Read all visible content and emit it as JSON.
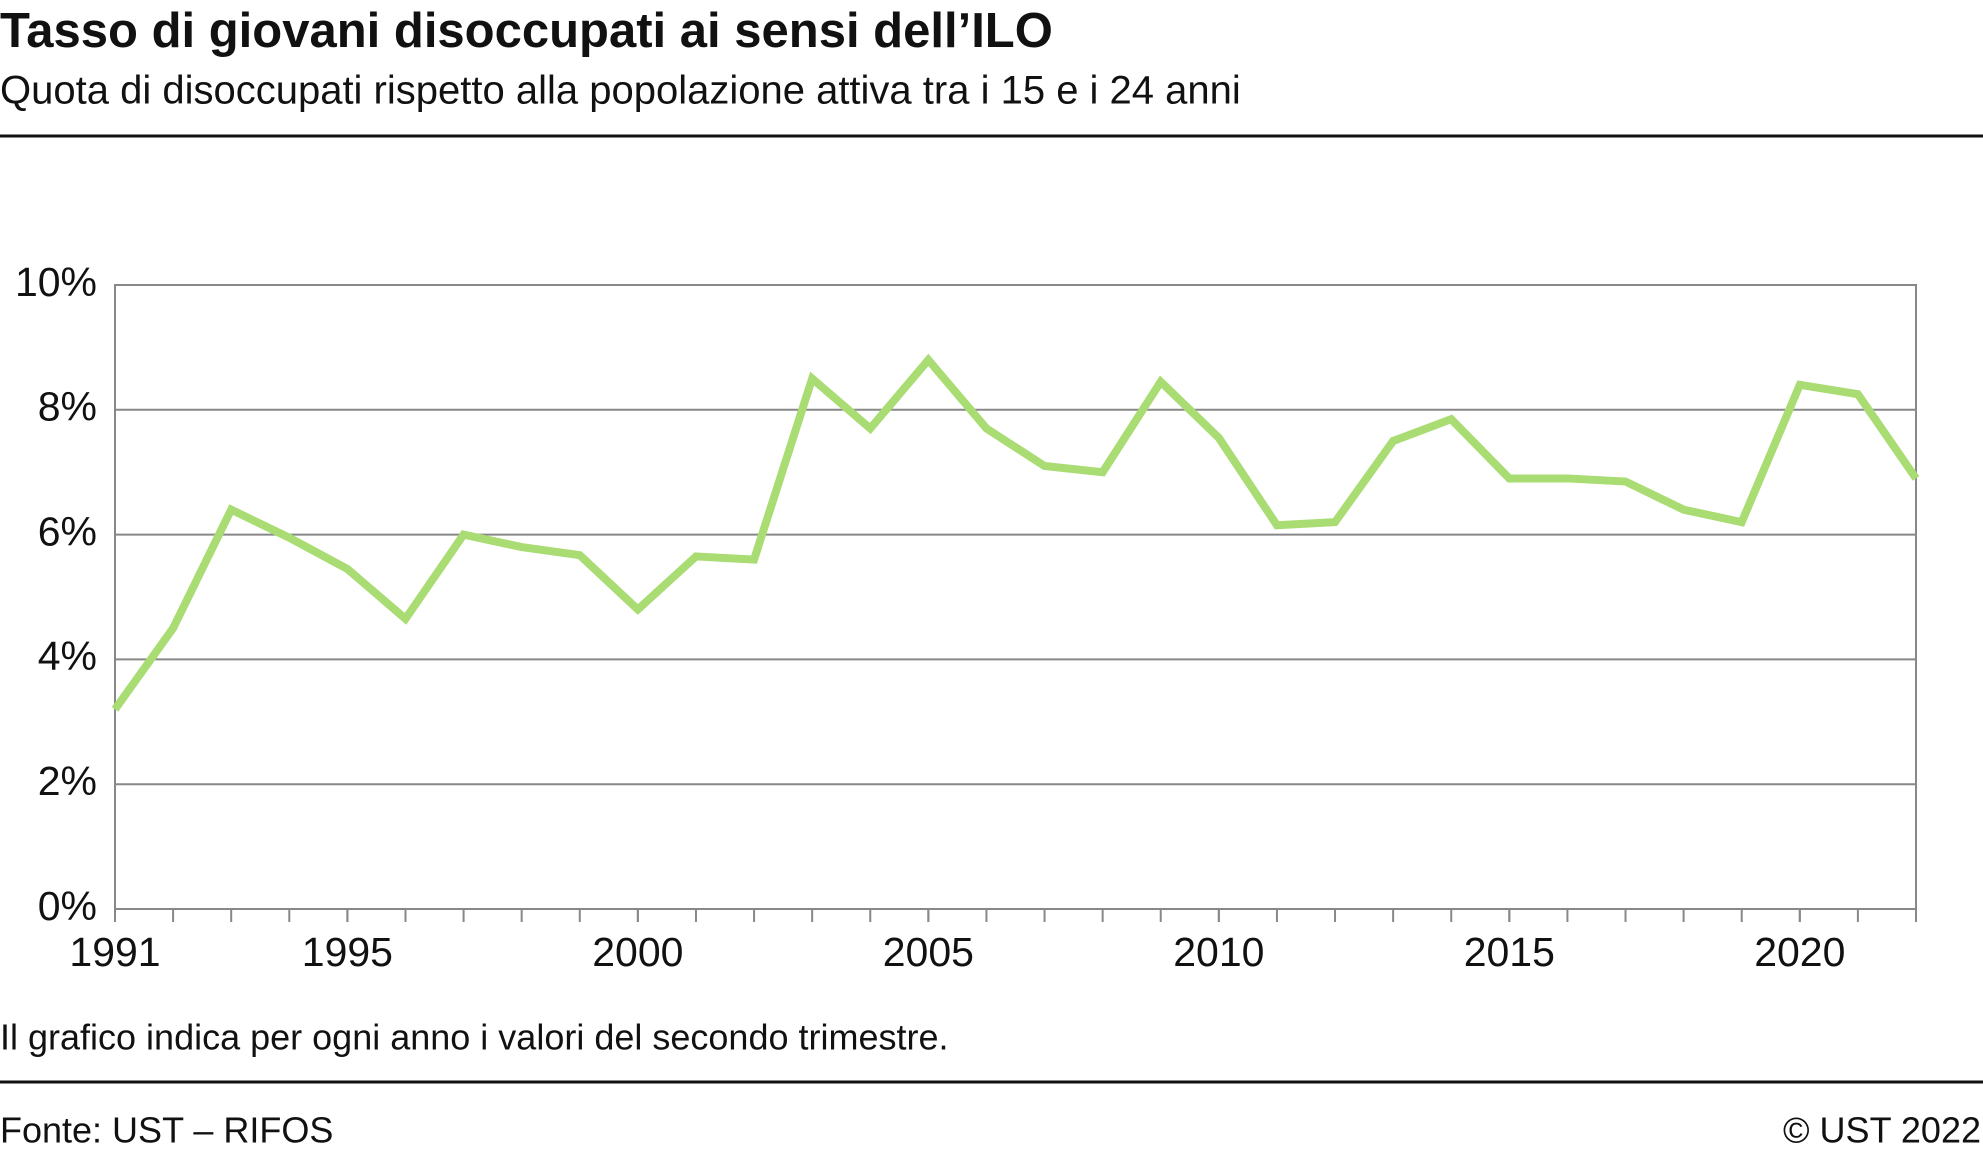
{
  "chart_data": {
    "type": "line",
    "title": "Tasso di giovani disoccupati ai sensi dell’ILO",
    "subtitle": "Quota di disoccupati rispetto alla popolazione attiva tra i 15 e i 24 anni",
    "note": "Il grafico indica per ogni anno i valori del secondo trimestre.",
    "source": "Fonte: UST – RIFOS",
    "copyright": "© UST 2022",
    "x": [
      1991,
      1992,
      1993,
      1994,
      1995,
      1996,
      1997,
      1998,
      1999,
      2000,
      2001,
      2002,
      2003,
      2004,
      2005,
      2006,
      2007,
      2008,
      2009,
      2010,
      2011,
      2012,
      2013,
      2014,
      2015,
      2016,
      2017,
      2018,
      2019,
      2020,
      2021,
      2022
    ],
    "series": [
      {
        "color": "#a9dc72",
        "values": [
          3.2,
          4.5,
          6.4,
          5.95,
          5.45,
          4.65,
          6.0,
          5.8,
          5.67,
          4.8,
          5.65,
          5.6,
          8.5,
          7.7,
          8.8,
          7.7,
          7.1,
          7.0,
          8.45,
          7.55,
          6.15,
          6.2,
          7.5,
          7.85,
          6.9,
          6.9,
          6.85,
          6.4,
          6.2,
          8.4,
          8.25,
          6.9
        ]
      }
    ],
    "xlim": [
      1991,
      2022
    ],
    "xticks": [
      1991,
      1995,
      2000,
      2005,
      2010,
      2015,
      2020
    ],
    "ylim": [
      0,
      10
    ],
    "yticks": [
      {
        "value": 0,
        "label": "0%"
      },
      {
        "value": 2,
        "label": "2%"
      },
      {
        "value": 4,
        "label": "4%"
      },
      {
        "value": 6,
        "label": "6%"
      },
      {
        "value": 8,
        "label": "8%"
      },
      {
        "value": 10,
        "label": "10%"
      }
    ],
    "grid": true
  }
}
